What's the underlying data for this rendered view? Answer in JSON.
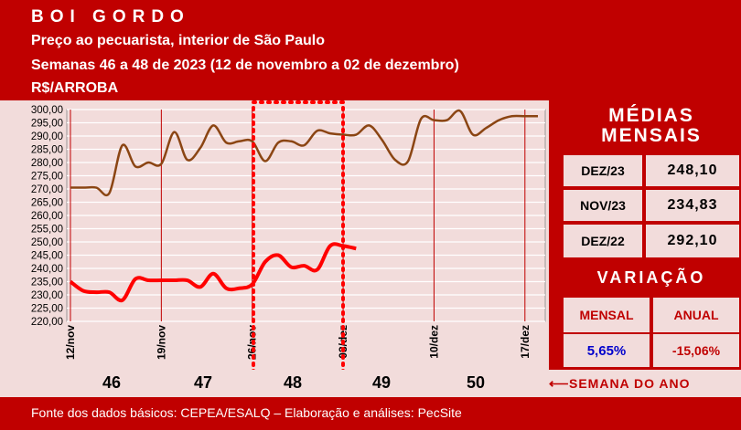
{
  "header": {
    "title": "BOI GORDO",
    "subtitle": "Preço ao pecuarista, interior de São Paulo",
    "period": "Semanas 46 a 48 de 2023 (12 de novembro a 02 de dezembro)",
    "unit": "R$/ARROBA"
  },
  "chart_data": {
    "type": "line",
    "y_ticks": [
      "300,00",
      "295,00",
      "290,00",
      "285,00",
      "280,00",
      "275,00",
      "270,00",
      "265,00",
      "260,00",
      "255,00",
      "250,00",
      "245,00",
      "240,00",
      "235,00",
      "230,00",
      "225,00",
      "220,00"
    ],
    "ylim": [
      220,
      300
    ],
    "x_tick_labels": [
      "12/nov",
      "19/nov",
      "26/nov",
      "03/dez",
      "10/dez",
      "17/dez"
    ],
    "grid": true,
    "series": [
      {
        "color": "#8b4513",
        "x": [
          0,
          1,
          2,
          3,
          4,
          5,
          6,
          7,
          8,
          9,
          10,
          11,
          12,
          13,
          14,
          15,
          16,
          17,
          18,
          19,
          20,
          21,
          22,
          23,
          24,
          25,
          26,
          27,
          28,
          29,
          30,
          31,
          32,
          33,
          34,
          35,
          36
        ],
        "y": [
          270.5,
          270.5,
          270.5,
          268.5,
          286.5,
          278.5,
          280,
          279.5,
          291.5,
          281,
          285.5,
          294,
          287.5,
          288,
          288,
          280.5,
          287.5,
          288,
          286.5,
          292,
          291,
          290.5,
          290.5,
          294,
          288.5,
          281,
          280.5,
          296.5,
          296,
          296,
          299.5,
          290.5,
          293,
          296,
          297.5,
          297.5,
          297.5
        ]
      },
      {
        "color": "#ff0000",
        "x": [
          0,
          1,
          2,
          3,
          4,
          5,
          6,
          7,
          8,
          9,
          10,
          11,
          12,
          13,
          14,
          15,
          16,
          17,
          18,
          19,
          20,
          21,
          22
        ],
        "y": [
          235,
          231.5,
          231,
          231,
          228,
          236,
          235.5,
          235.5,
          235.5,
          235.5,
          233,
          238,
          232.5,
          232.5,
          234,
          242.5,
          245,
          240.5,
          241,
          239.5,
          248.5,
          248.5,
          247.5
        ]
      }
    ],
    "highlight_week": "48"
  },
  "side": {
    "title_line1": "MÉDIAS",
    "title_line2": "MENSAIS",
    "rows": [
      {
        "label": "DEZ/23",
        "value": "248,10"
      },
      {
        "label": "NOV/23",
        "value": "234,83"
      },
      {
        "label": "DEZ/22",
        "value": "292,10"
      }
    ],
    "variation_title": "VARIAÇÃO",
    "variation_labels": [
      "MENSAL",
      "ANUAL"
    ],
    "variation_values": [
      "5,65%",
      "-15,06%"
    ]
  },
  "weeks": {
    "numbers": [
      "46",
      "47",
      "48",
      "49",
      "50"
    ],
    "label": "SEMANA DO ANO",
    "arrow": "⟵"
  },
  "footer": {
    "source": "Fonte dos dados básicos: CEPEA/ESALQ – Elaboração e análises: PecSite"
  },
  "colors": {
    "brand_red": "#c00000",
    "panel_pink": "#f2dcdb",
    "highlight_red": "#ff0000",
    "variation_blue": "#0000cc"
  }
}
